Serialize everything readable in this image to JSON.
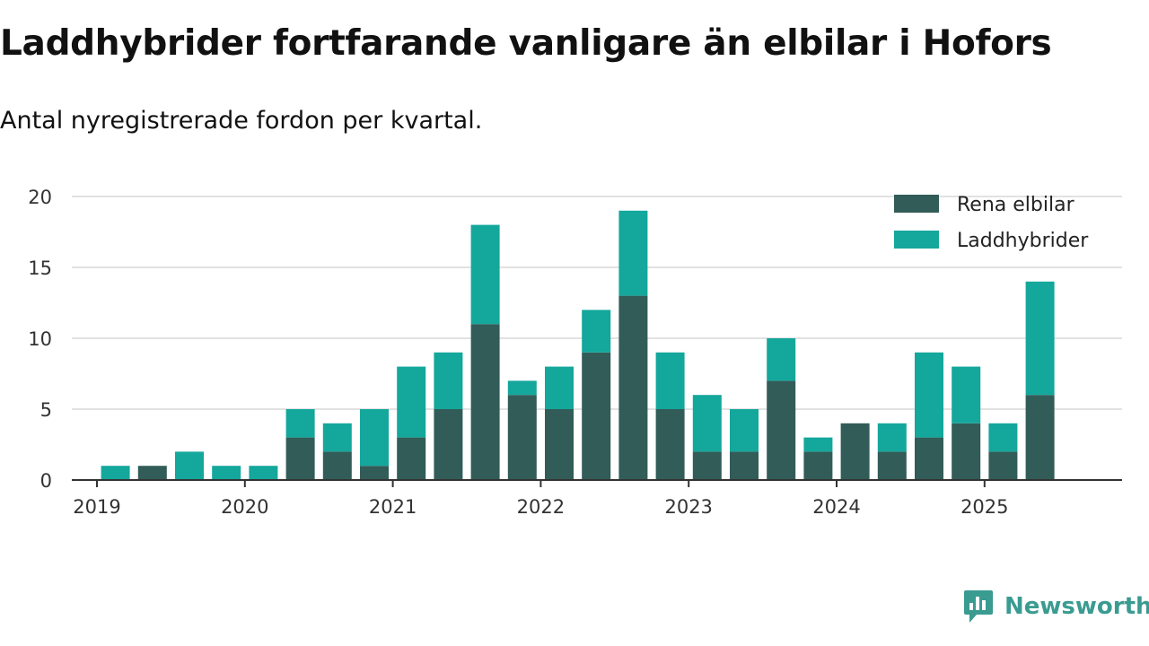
{
  "title": "Laddhybrider fortfarande vanligare än elbilar i Hofors",
  "subtitle": "Antal nyregistrerade fordon per kvartal.",
  "brand": "Newsworthy",
  "colors": {
    "elbilar": "#325c58",
    "laddhybrider": "#14a79c",
    "brand": "#3a9b91",
    "grid": "#d9d9d9",
    "axis": "#333333"
  },
  "chart_data": {
    "type": "bar",
    "stacked": true,
    "categories": [
      "2019Q1",
      "2019Q2",
      "2019Q3",
      "2019Q4",
      "2020Q1",
      "2020Q2",
      "2020Q3",
      "2020Q4",
      "2021Q1",
      "2021Q2",
      "2021Q3",
      "2021Q4",
      "2022Q1",
      "2022Q2",
      "2022Q3",
      "2022Q4",
      "2023Q1",
      "2023Q2",
      "2023Q3",
      "2023Q4",
      "2024Q1",
      "2024Q2",
      "2024Q3",
      "2024Q4",
      "2025Q1",
      "2025Q2",
      "2025Q3"
    ],
    "series": [
      {
        "name": "Rena elbilar",
        "color_key": "elbilar",
        "values": [
          0,
          1,
          0,
          0,
          0,
          3,
          2,
          1,
          3,
          5,
          11,
          6,
          5,
          9,
          13,
          5,
          2,
          2,
          7,
          2,
          4,
          2,
          3,
          4,
          2,
          6,
          0
        ]
      },
      {
        "name": "Laddhybrider",
        "color_key": "laddhybrider",
        "values": [
          1,
          0,
          2,
          1,
          1,
          2,
          2,
          4,
          5,
          4,
          7,
          1,
          3,
          3,
          6,
          4,
          4,
          3,
          3,
          1,
          0,
          2,
          6,
          4,
          2,
          8,
          0
        ]
      }
    ],
    "x_ticks": [
      "2019",
      "2020",
      "2021",
      "2022",
      "2023",
      "2024",
      "2025"
    ],
    "y_ticks": [
      0,
      5,
      10,
      15,
      20
    ],
    "ylim": [
      0,
      20
    ],
    "xlabel": "",
    "ylabel": "",
    "grid": true,
    "legend": "top-right"
  }
}
